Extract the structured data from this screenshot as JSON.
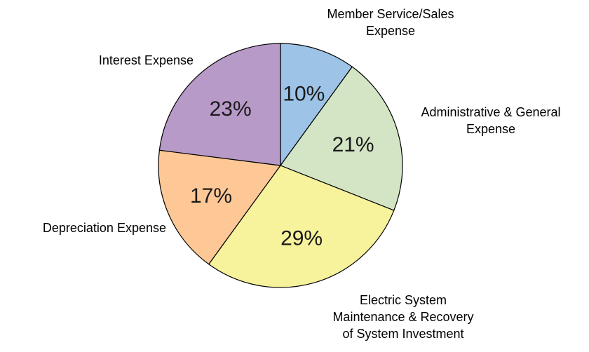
{
  "chart_data": {
    "type": "pie",
    "title": "",
    "slices": [
      {
        "label": [
          "Member Service/Sales",
          "Expense"
        ],
        "value": 10,
        "value_label": "10%",
        "color": "#9dc3e6"
      },
      {
        "label": [
          "Administrative & General",
          "Expense"
        ],
        "value": 21,
        "value_label": "21%",
        "color": "#d3e5c4"
      },
      {
        "label": [
          "Electric System",
          "Maintenance & Recovery",
          "of System Investment"
        ],
        "value": 29,
        "value_label": "29%",
        "color": "#f7f29c"
      },
      {
        "label": [
          "Depreciation Expense"
        ],
        "value": 17,
        "value_label": "17%",
        "color": "#fdc896"
      },
      {
        "label": [
          "Interest Expense"
        ],
        "value": 23,
        "value_label": "23%",
        "color": "#b89ac8"
      }
    ],
    "legend": "none",
    "start_angle_deg": 0,
    "direction": "clockwise"
  }
}
